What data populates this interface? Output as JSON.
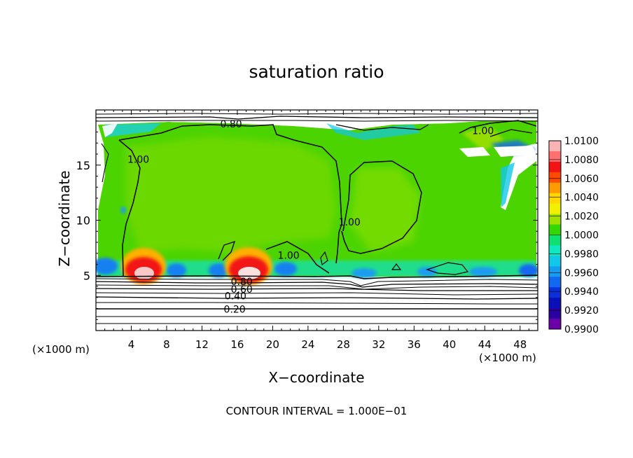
{
  "chart_data": {
    "type": "heatmap",
    "title": "saturation ratio",
    "xlabel": "X−coordinate",
    "ylabel": "Z−coordinate",
    "x_unit_label": "(×1000 m)",
    "x_unit_label_right": "(×1000 m)",
    "xlim": [
      0,
      50
    ],
    "ylim": [
      0,
      20
    ],
    "x_ticks": [
      4,
      8,
      12,
      16,
      20,
      24,
      28,
      32,
      36,
      40,
      44,
      48
    ],
    "y_ticks": [
      5,
      10,
      15
    ],
    "colorbar": {
      "min": 0.99,
      "max": 1.01,
      "labels": [
        "1.0100",
        "1.0080",
        "1.0060",
        "1.0040",
        "1.0020",
        "1.0000",
        "0.9980",
        "0.9960",
        "0.9940",
        "0.9920",
        "0.9900"
      ],
      "colors": [
        "#f8b4b4",
        "#ff7070",
        "#f21414",
        "#ff4a00",
        "#ff9a00",
        "#ffd600",
        "#f0f000",
        "#9fe000",
        "#34d800",
        "#10e070",
        "#0fe8c0",
        "#12c8e8",
        "#149cf0",
        "#1268f0",
        "#0a30d8",
        "#0a10b8",
        "#2a00a0",
        "#6a00a8"
      ]
    },
    "contour_labels": [
      {
        "text": "0.80",
        "x": 15.3,
        "z": 18.8
      },
      {
        "text": "1.00",
        "x": 4.8,
        "z": 15.6
      },
      {
        "text": "1.00",
        "x": 43.8,
        "z": 18.2
      },
      {
        "text": "1.00",
        "x": 28.7,
        "z": 9.9
      },
      {
        "text": "1.00",
        "x": 21.8,
        "z": 6.9
      },
      {
        "text": "0.80",
        "x": 16.5,
        "z": 4.5
      },
      {
        "text": "0.60",
        "x": 16.5,
        "z": 3.8
      },
      {
        "text": "0.40",
        "x": 15.8,
        "z": 3.2
      },
      {
        "text": "0.20",
        "x": 15.7,
        "z": 2.0
      }
    ],
    "footer": "CONTOUR INTERVAL = 1.000E−01"
  }
}
